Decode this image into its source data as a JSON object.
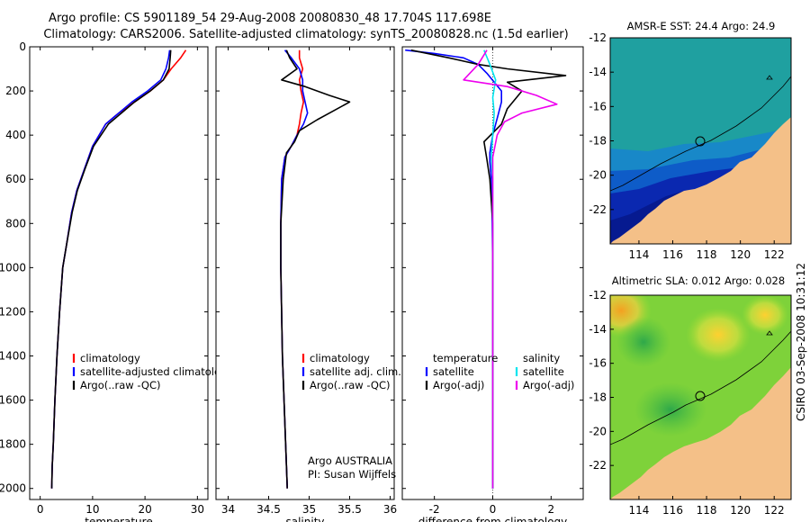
{
  "figure": {
    "title_line1": "Argo profile: CS 5901189_54 29-Aug-2008 20080830_48 17.704S 117.698E",
    "title_line2": "Climatology: CARS2006. Satellite-adjusted climatology: synTS_20080828.nc (1.5d earlier)",
    "stamp": "CSIRO 03-Sep-2008 10:31:12"
  },
  "colors": {
    "climatology": "#ff0000",
    "satellite": "#0000ff",
    "argo": "#000000",
    "salinity_satellite": "#00e5ee",
    "salinity_argo": "#ee00ee",
    "land": "#f4c088"
  },
  "chart_data": [
    {
      "type": "line",
      "panel": "temperature",
      "xlabel": "temperature",
      "ylabel": "",
      "xlim": [
        -2,
        32
      ],
      "ylim": [
        2050,
        0
      ],
      "xticks": [
        0,
        10,
        20,
        30
      ],
      "yticks": [
        0,
        200,
        400,
        600,
        800,
        1000,
        1200,
        1400,
        1600,
        1800,
        2000
      ],
      "legend": [
        "climatology",
        "satellite-adjusted climatology",
        "Argo(..raw -QC)"
      ],
      "series": [
        {
          "name": "climatology",
          "color": "#ff0000",
          "x": [
            27.8,
            26.8,
            25.0,
            23.5,
            21.0,
            18.0,
            15.0,
            12.5,
            10.0,
            8.5,
            7.0,
            6.0,
            5.0,
            4.3,
            3.7,
            3.2,
            2.8,
            2.5,
            2.3,
            2.2
          ],
          "y": [
            15,
            50,
            100,
            150,
            200,
            250,
            300,
            350,
            450,
            550,
            650,
            750,
            900,
            1000,
            1200,
            1400,
            1600,
            1800,
            1900,
            2000
          ]
        },
        {
          "name": "satellite-adjusted climatology",
          "color": "#0000ff",
          "x": [
            24.7,
            24.5,
            24.0,
            23.0,
            20.5,
            17.5,
            15.0,
            12.5,
            10.0,
            8.5,
            7.0,
            6.0,
            5.0,
            4.3,
            3.7,
            3.2,
            2.8,
            2.5,
            2.3,
            2.2
          ],
          "y": [
            15,
            50,
            100,
            150,
            200,
            250,
            300,
            350,
            450,
            550,
            650,
            750,
            900,
            1000,
            1200,
            1400,
            1600,
            1800,
            1900,
            2000
          ]
        },
        {
          "name": "Argo(..raw -QC)",
          "color": "#000000",
          "x": [
            24.9,
            24.8,
            24.6,
            23.5,
            21.0,
            18.0,
            15.5,
            13.0,
            10.2,
            8.6,
            7.1,
            6.1,
            5.0,
            4.3,
            3.7,
            3.2,
            2.8,
            2.5,
            2.3,
            2.2
          ],
          "y": [
            15,
            50,
            100,
            150,
            200,
            250,
            300,
            350,
            450,
            550,
            650,
            750,
            900,
            1000,
            1200,
            1400,
            1600,
            1800,
            1900,
            2000
          ]
        }
      ]
    },
    {
      "type": "line",
      "panel": "salinity",
      "xlabel": "salinity",
      "ylabel": "",
      "xlim": [
        33.85,
        36.05
      ],
      "ylim": [
        2050,
        0
      ],
      "xticks": [
        34,
        34.5,
        35,
        35.5,
        36
      ],
      "legend": [
        "climatology",
        "satellite adj. clim.",
        "Argo(..raw -QC)"
      ],
      "annotation_line1": "Argo AUSTRALIA",
      "annotation_line2": "PI: Susan Wijffels",
      "series": [
        {
          "name": "climatology",
          "color": "#ff0000",
          "x": [
            34.88,
            34.88,
            34.92,
            34.88,
            34.9,
            34.93,
            34.9,
            34.88,
            34.85,
            34.78,
            34.7,
            34.66,
            34.65,
            34.65,
            34.66,
            34.67,
            34.69,
            34.71,
            34.72,
            34.73
          ],
          "y": [
            15,
            50,
            100,
            150,
            200,
            250,
            300,
            350,
            400,
            450,
            500,
            600,
            800,
            1000,
            1200,
            1400,
            1600,
            1800,
            1900,
            2000
          ]
        },
        {
          "name": "satellite adj. clim.",
          "color": "#0000ff",
          "x": [
            34.7,
            34.78,
            34.88,
            34.92,
            34.92,
            34.95,
            34.98,
            34.93,
            34.85,
            34.78,
            34.7,
            34.66,
            34.65,
            34.65,
            34.66,
            34.67,
            34.69,
            34.71,
            34.72,
            34.73
          ],
          "y": [
            15,
            50,
            100,
            150,
            200,
            250,
            300,
            350,
            400,
            450,
            500,
            600,
            800,
            1000,
            1200,
            1400,
            1600,
            1800,
            1900,
            2000
          ]
        },
        {
          "name": "Argo(..raw -QC)",
          "color": "#000000",
          "x": [
            34.72,
            34.76,
            34.85,
            34.66,
            34.95,
            35.25,
            35.5,
            35.3,
            35.1,
            34.88,
            34.82,
            34.72,
            34.68,
            34.65,
            34.65,
            34.66,
            34.67,
            34.69,
            34.71,
            34.72,
            34.73
          ],
          "y": [
            15,
            50,
            100,
            150,
            180,
            220,
            250,
            290,
            330,
            380,
            430,
            480,
            600,
            800,
            1000,
            1200,
            1400,
            1600,
            1800,
            1900,
            2000
          ]
        }
      ]
    },
    {
      "type": "line",
      "panel": "difference",
      "xlabel": "difference from climatology",
      "ylabel": "",
      "xlim": [
        -3.1,
        3.1
      ],
      "ylim": [
        2050,
        0
      ],
      "xticks": [
        -2,
        0,
        2
      ],
      "legend": [
        "temperature",
        "satellite",
        "Argo(-adj)",
        "salinity",
        "satellite",
        "Argo(-adj)"
      ],
      "series": [
        {
          "name": "satellite",
          "group": "temperature",
          "color": "#0000ff",
          "x": [
            -3.0,
            -2.0,
            -1.0,
            -0.5,
            -0.2,
            0.3,
            0.3,
            0.2,
            0.0,
            -0.1,
            -0.1,
            -0.05,
            -0.02,
            0.0,
            0.0,
            0.0,
            0.0,
            0.0
          ],
          "y": [
            15,
            30,
            50,
            80,
            120,
            200,
            250,
            300,
            400,
            480,
            520,
            600,
            800,
            1000,
            1200,
            1400,
            1600,
            2000
          ]
        },
        {
          "name": "Argo(-adj)",
          "group": "temperature",
          "color": "#000000",
          "x": [
            -2.8,
            -1.5,
            -0.5,
            0.5,
            2.5,
            0.5,
            1.0,
            0.5,
            0.3,
            -0.3,
            -0.2,
            -0.1,
            0.0,
            0.0,
            0.0,
            0.0,
            0.0,
            0.0
          ],
          "y": [
            15,
            50,
            80,
            100,
            130,
            160,
            200,
            280,
            350,
            430,
            510,
            600,
            800,
            1000,
            1200,
            1400,
            1600,
            2000
          ]
        },
        {
          "name": "satellite",
          "group": "salinity",
          "color": "#00e5ee",
          "x": [
            -0.3,
            -0.1,
            0.1,
            0.0,
            0.05,
            0.0,
            -0.05,
            0.0,
            0.0,
            0.0,
            0.0,
            0.0
          ],
          "y": [
            15,
            80,
            150,
            230,
            300,
            400,
            500,
            600,
            1000,
            1400,
            1800,
            2000
          ]
        },
        {
          "name": "Argo(-adj)",
          "group": "salinity",
          "color": "#ee00ee",
          "x": [
            -0.2,
            -0.5,
            -1.0,
            0.5,
            1.5,
            2.2,
            1.0,
            0.4,
            0.15,
            0.0,
            0.0,
            0.0,
            0.0
          ],
          "y": [
            15,
            80,
            150,
            180,
            220,
            260,
            300,
            340,
            400,
            500,
            800,
            1500,
            2000
          ]
        }
      ]
    },
    {
      "type": "heatmap",
      "panel": "amsr-e-sst",
      "title": "AMSR-E SST: 24.4 Argo: 24.9",
      "xlim": [
        112.3,
        123
      ],
      "ylim": [
        -24,
        -12
      ],
      "xticks": [
        114,
        116,
        118,
        120,
        122
      ],
      "yticks": [
        -12,
        -14,
        -16,
        -18,
        -20,
        -22
      ],
      "argo_position": {
        "lon": 117.698,
        "lat": -17.704
      }
    },
    {
      "type": "heatmap",
      "panel": "altimetric-sla",
      "title": "Altimetric SLA: 0.012 Argo: 0.028",
      "xlim": [
        112.3,
        123
      ],
      "ylim": [
        -24,
        -12
      ],
      "xticks": [
        114,
        116,
        118,
        120,
        122
      ],
      "yticks": [
        -12,
        -14,
        -16,
        -18,
        -20,
        -22
      ],
      "argo_position": {
        "lon": 117.698,
        "lat": -17.704
      }
    }
  ]
}
